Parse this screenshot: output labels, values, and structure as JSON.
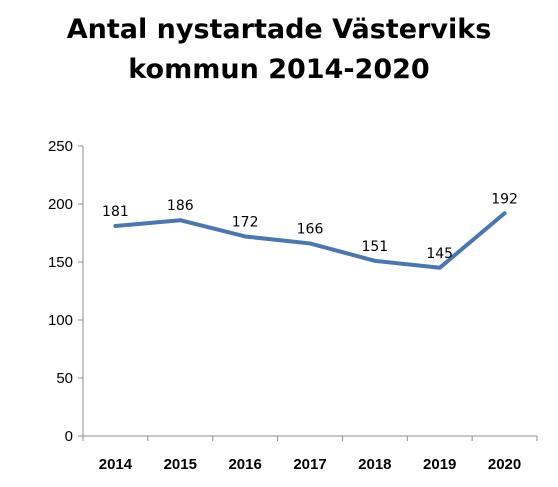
{
  "chart_data": {
    "type": "line",
    "title_lines": [
      "Antal nystartade Västerviks",
      "kommun 2014-2020"
    ],
    "categories": [
      "2014",
      "2015",
      "2016",
      "2017",
      "2018",
      "2019",
      "2020"
    ],
    "series": [
      {
        "values": [
          181,
          186,
          172,
          166,
          151,
          145,
          192
        ],
        "color": "#4a76b2"
      }
    ],
    "y_ticks": [
      "0",
      "50",
      "100",
      "150",
      "200",
      "250"
    ],
    "ylim": [
      0,
      250
    ],
    "data_labels": true,
    "grid": false,
    "legend": "none",
    "xlabel": "",
    "ylabel": ""
  }
}
